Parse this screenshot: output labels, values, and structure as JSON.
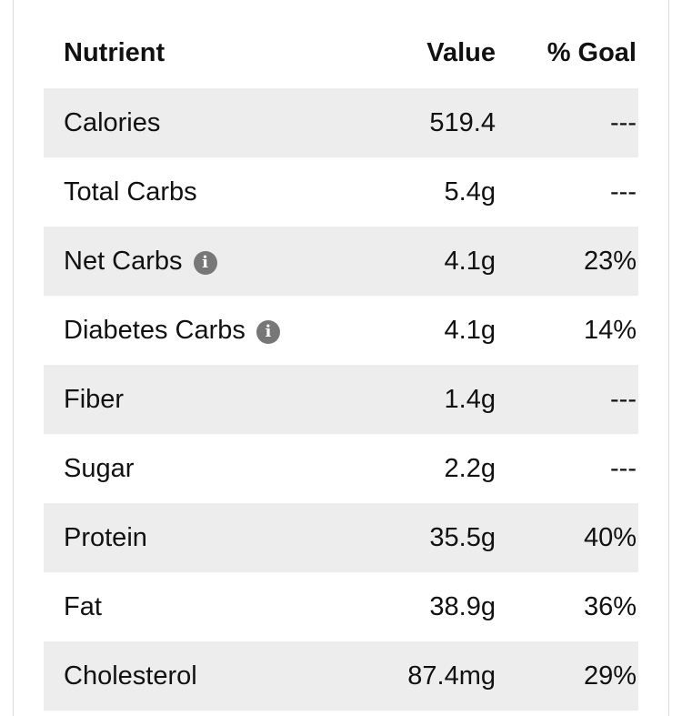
{
  "table": {
    "headers": {
      "nutrient": "Nutrient",
      "value": "Value",
      "goal": "% Goal"
    },
    "rows": [
      {
        "name": "Calories",
        "value": "519.4",
        "goal": "---",
        "info": false
      },
      {
        "name": "Total Carbs",
        "value": "5.4g",
        "goal": "---",
        "info": false
      },
      {
        "name": "Net Carbs",
        "value": "4.1g",
        "goal": "23%",
        "info": true
      },
      {
        "name": "Diabetes Carbs",
        "value": "4.1g",
        "goal": "14%",
        "info": true
      },
      {
        "name": "Fiber",
        "value": "1.4g",
        "goal": "---",
        "info": false
      },
      {
        "name": "Sugar",
        "value": "2.2g",
        "goal": "---",
        "info": false
      },
      {
        "name": "Protein",
        "value": "35.5g",
        "goal": "40%",
        "info": false
      },
      {
        "name": "Fat",
        "value": "38.9g",
        "goal": "36%",
        "info": false
      },
      {
        "name": "Cholesterol",
        "value": "87.4mg",
        "goal": "29%",
        "info": false
      }
    ]
  },
  "icons": {
    "info_glyph": "i"
  },
  "colors": {
    "row_shade": "#ededed",
    "icon_bg": "#777777"
  }
}
